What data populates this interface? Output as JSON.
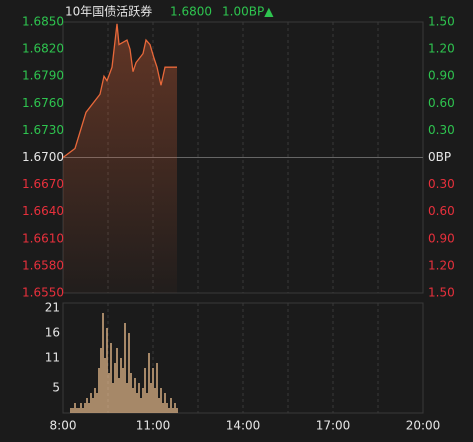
{
  "header": {
    "title": "10年国债活跃券",
    "last": "1.6800",
    "change": "1.00BP▲"
  },
  "chart_data": [
    {
      "type": "line",
      "color": "#e8683a",
      "up_color": "#2ec44f",
      "down_color": "#e8303c",
      "flat_color": "#e6e6e6",
      "x": [
        "8:00",
        "8:24",
        "8:46",
        "9:14",
        "9:22",
        "9:28",
        "9:38",
        "9:48",
        "9:52",
        "10:08",
        "10:14",
        "10:20",
        "10:26",
        "10:40",
        "10:46",
        "10:54",
        "11:02",
        "11:08",
        "11:16",
        "11:24",
        "11:48"
      ],
      "values": [
        1.67,
        1.671,
        1.675,
        1.677,
        1.679,
        1.6785,
        1.68,
        1.6848,
        1.6825,
        1.683,
        1.682,
        1.6795,
        1.6805,
        1.6815,
        1.683,
        1.6825,
        1.681,
        1.68,
        1.678,
        1.68,
        1.68
      ],
      "ylim": [
        1.655,
        1.685
      ],
      "yticks": [
        {
          "value": 1.685,
          "label": "1.6850"
        },
        {
          "value": 1.682,
          "label": "1.6820"
        },
        {
          "value": 1.679,
          "label": "1.6790"
        },
        {
          "value": 1.676,
          "label": "1.6760"
        },
        {
          "value": 1.673,
          "label": "1.6730"
        },
        {
          "value": 1.67,
          "label": "1.6700"
        },
        {
          "value": 1.667,
          "label": "1.6670"
        },
        {
          "value": 1.664,
          "label": "1.6640"
        },
        {
          "value": 1.661,
          "label": "1.6610"
        },
        {
          "value": 1.658,
          "label": "1.6580"
        },
        {
          "value": 1.655,
          "label": "1.6550"
        }
      ],
      "y2lim": [
        -1.5,
        1.5
      ],
      "y2ticks": [
        {
          "value": 1.5,
          "label": "1.50"
        },
        {
          "value": 1.2,
          "label": "1.20"
        },
        {
          "value": 0.9,
          "label": "0.90"
        },
        {
          "value": 0.6,
          "label": "0.60"
        },
        {
          "value": 0.3,
          "label": "0.30"
        },
        {
          "value": 0,
          "label": "0BP"
        },
        {
          "value": -0.3,
          "label": "0.30"
        },
        {
          "value": -0.6,
          "label": "0.60"
        },
        {
          "value": -0.9,
          "label": "0.90"
        },
        {
          "value": -1.2,
          "label": "1.20"
        },
        {
          "value": -1.5,
          "label": "1.50"
        }
      ]
    },
    {
      "type": "bar",
      "color": "#c9a37c",
      "x": [
        "8:16",
        "8:20",
        "8:24",
        "8:28",
        "8:32",
        "8:36",
        "8:40",
        "8:44",
        "8:48",
        "8:52",
        "8:56",
        "9:00",
        "9:04",
        "9:08",
        "9:12",
        "9:16",
        "9:20",
        "9:24",
        "9:28",
        "9:32",
        "9:36",
        "9:40",
        "9:44",
        "9:48",
        "9:52",
        "9:56",
        "10:00",
        "10:04",
        "10:08",
        "10:12",
        "10:16",
        "10:20",
        "10:24",
        "10:28",
        "10:32",
        "10:36",
        "10:40",
        "10:44",
        "10:48",
        "10:52",
        "10:56",
        "11:00",
        "11:04",
        "11:08",
        "11:12",
        "11:16",
        "11:20",
        "11:24",
        "11:28",
        "11:32",
        "11:36",
        "11:40",
        "11:44",
        "11:48"
      ],
      "values": [
        1,
        1,
        2,
        1,
        1,
        2,
        1,
        2,
        3,
        2,
        4,
        3,
        5,
        4,
        9,
        13,
        20,
        11,
        17,
        8,
        14,
        6,
        10,
        13,
        7,
        11,
        9,
        18,
        6,
        16,
        8,
        5,
        7,
        4,
        6,
        3,
        5,
        9,
        4,
        12,
        6,
        9,
        5,
        10,
        3,
        5,
        2,
        4,
        2,
        1,
        3,
        1,
        2,
        1
      ],
      "xlim": [
        "8:00",
        "20:00"
      ],
      "xticks": [
        "8:00",
        "11:00",
        "14:00",
        "17:00",
        "20:00"
      ],
      "ylim": [
        0,
        22
      ],
      "yticks": [
        5,
        11,
        16,
        21
      ]
    }
  ]
}
